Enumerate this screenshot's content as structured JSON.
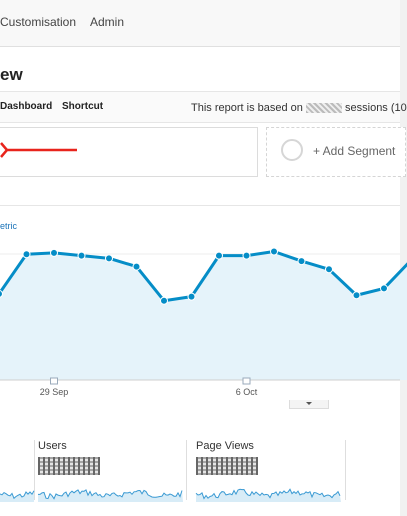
{
  "topnav": {
    "items": [
      {
        "label": "Customisation"
      },
      {
        "label": "Admin"
      }
    ]
  },
  "page": {
    "title": "ew"
  },
  "toolbar": {
    "dashboard_label": "Dashboard",
    "shortcut_label": "Shortcut",
    "note_prefix": "This report is based on ",
    "note_suffix": " sessions (10"
  },
  "segments": {
    "add_label": "+ Add Segment"
  },
  "chart": {
    "metric_link": "etric",
    "accent": "#058dc7",
    "fill": "#e5f3fa"
  },
  "chart_data": {
    "type": "area",
    "x_labels": [
      "29 Sep",
      "6 Oct"
    ],
    "values": [
      63,
      92,
      93,
      91,
      89,
      83,
      58,
      61,
      91,
      91,
      94,
      87,
      81,
      62,
      67,
      88
    ],
    "ylim": [
      0,
      120
    ]
  },
  "sparklines": [
    {
      "label": "Users"
    },
    {
      "label": "Page Views"
    }
  ]
}
